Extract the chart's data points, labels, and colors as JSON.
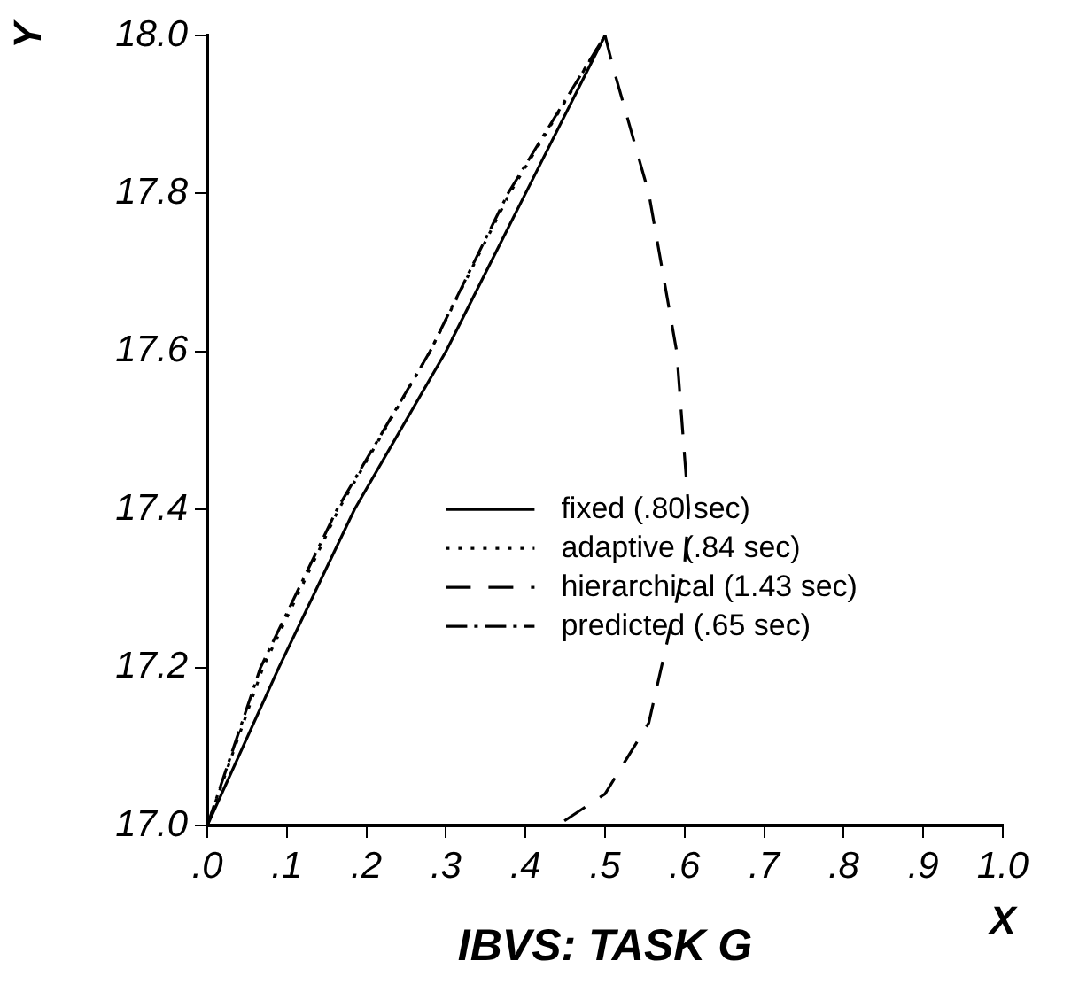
{
  "chart_data": {
    "type": "line",
    "title": "IBVS: TASK G",
    "xlabel": "X",
    "ylabel": "Y",
    "xlim": [
      0,
      1
    ],
    "ylim": [
      17,
      18
    ],
    "xticks": [
      {
        "value": 0,
        "label": ".0"
      },
      {
        "value": 0.1,
        "label": ".1"
      },
      {
        "value": 0.2,
        "label": ".2"
      },
      {
        "value": 0.3,
        "label": ".3"
      },
      {
        "value": 0.4,
        "label": ".4"
      },
      {
        "value": 0.5,
        "label": ".5"
      },
      {
        "value": 0.6,
        "label": ".6"
      },
      {
        "value": 0.7,
        "label": ".7"
      },
      {
        "value": 0.8,
        "label": ".8"
      },
      {
        "value": 0.9,
        "label": ".9"
      },
      {
        "value": 1,
        "label": "1.0"
      }
    ],
    "yticks": [
      {
        "value": 17,
        "label": "17.0"
      },
      {
        "value": 17.2,
        "label": "17.2"
      },
      {
        "value": 17.4,
        "label": "17.4"
      },
      {
        "value": 17.6,
        "label": "17.6"
      },
      {
        "value": 17.8,
        "label": "17.8"
      },
      {
        "value": 18,
        "label": "18.0"
      }
    ],
    "grid": false,
    "legend": "right",
    "marker": "none",
    "series": [
      {
        "name": "fixed (.80 sec)",
        "color": "#000000",
        "line_style": "solid",
        "x": [
          0,
          0.09,
          0.185,
          0.3,
          0.4,
          0.5
        ],
        "values": [
          17,
          17.2,
          17.4,
          17.6,
          17.8,
          18
        ]
      },
      {
        "name": "adaptive (.84 sec)",
        "color": "#000000",
        "line_style": "dotted",
        "x": [
          0,
          0.07,
          0.165,
          0.28,
          0.38,
          0.5
        ],
        "values": [
          17,
          17.2,
          17.4,
          17.6,
          17.8,
          18
        ]
      },
      {
        "name": "hierarchical (1.43 sec)",
        "color": "#000000",
        "line_style": "dashed",
        "x": [
          0.5,
          0.51,
          0.555,
          0.59,
          0.605,
          0.6,
          0.555,
          0.5,
          0.44
        ],
        "values": [
          18,
          17.96,
          17.8,
          17.6,
          17.4,
          17.33,
          17.13,
          17.04,
          17
        ]
      },
      {
        "name": "predicted (.65 sec)",
        "color": "#000000",
        "line_style": "dashdot",
        "x": [
          0,
          0.067,
          0.163,
          0.28,
          0.378,
          0.5
        ],
        "values": [
          17,
          17.2,
          17.4,
          17.6,
          17.8,
          18
        ]
      }
    ]
  }
}
